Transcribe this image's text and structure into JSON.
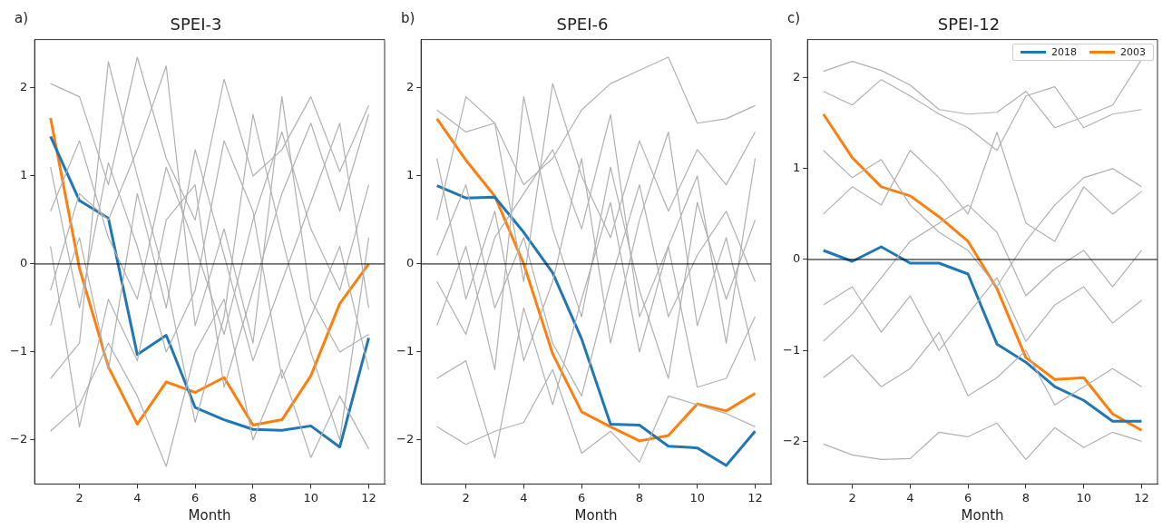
{
  "chart_data": [
    {
      "type": "line",
      "title": "SPEI-3",
      "xlabel": "Month",
      "annotations": [
        "a)"
      ],
      "x": [
        1,
        2,
        3,
        4,
        5,
        6,
        7,
        8,
        9,
        10,
        11,
        12
      ],
      "xlim": [
        0.45,
        12.55
      ],
      "xticks": [
        2,
        4,
        6,
        8,
        10,
        12
      ],
      "ylim": [
        -2.5,
        2.55
      ],
      "yticks": [
        -2,
        -1,
        0,
        1,
        2
      ],
      "grid": false,
      "legend": false,
      "ref_lines": [
        {
          "axis": "y",
          "value": 0,
          "color": "#000000"
        }
      ],
      "series": [
        {
          "color": "#b0b0b0",
          "values": [
            2.05,
            1.9,
            0.9,
            2.35,
            1.2,
            0.5,
            2.1,
            1.0,
            1.3,
            1.9,
            1.05,
            1.8
          ]
        },
        {
          "color": "#b0b0b0",
          "values": [
            -1.9,
            -1.6,
            -0.9,
            -1.5,
            -2.3,
            -1.0,
            -0.4,
            -2.0,
            -1.2,
            -2.2,
            -1.5,
            -2.1
          ]
        },
        {
          "color": "#b0b0b0",
          "values": [
            0.6,
            1.4,
            0.3,
            -0.4,
            1.1,
            0.2,
            -0.8,
            0.5,
            1.5,
            0.4,
            -0.3,
            0.9
          ]
        },
        {
          "color": "#b0b0b0",
          "values": [
            -0.7,
            0.3,
            -1.2,
            0.8,
            -0.5,
            1.3,
            0.1,
            -1.1,
            -0.2,
            0.7,
            1.6,
            -0.5
          ]
        },
        {
          "color": "#b0b0b0",
          "values": [
            1.1,
            -0.5,
            1.15,
            0.2,
            -1.0,
            -0.3,
            1.4,
            0.6,
            -1.3,
            -0.6,
            0.2,
            -1.2
          ]
        },
        {
          "color": "#b0b0b0",
          "values": [
            -1.3,
            -0.9,
            2.3,
            1.0,
            -0.2,
            -1.8,
            -0.6,
            1.7,
            0.3,
            -1.0,
            -2.0,
            0.3
          ]
        },
        {
          "color": "#b0b0b0",
          "values": [
            0.2,
            -1.85,
            -0.4,
            -1.1,
            0.5,
            0.9,
            -1.4,
            -0.3,
            0.8,
            1.6,
            0.6,
            1.7
          ]
        },
        {
          "color": "#b0b0b0",
          "values": [
            -0.3,
            0.8,
            0.5,
            1.3,
            2.25,
            -0.7,
            0.4,
            -0.9,
            1.9,
            -0.4,
            -1.0,
            -0.8
          ]
        },
        {
          "color": "#1f77b4",
          "values": [
            1.45,
            0.72,
            0.52,
            -1.03,
            -0.81,
            -1.63,
            -1.77,
            -1.88,
            -1.89,
            -1.84,
            -2.08,
            -0.84
          ]
        },
        {
          "color": "#ff7f0e",
          "values": [
            1.66,
            -0.05,
            -1.17,
            -1.82,
            -1.34,
            -1.46,
            -1.29,
            -1.83,
            -1.77,
            -1.27,
            -0.45,
            0.0
          ]
        }
      ]
    },
    {
      "type": "line",
      "title": "SPEI-6",
      "xlabel": "Month",
      "annotations": [
        "b)"
      ],
      "x": [
        1,
        2,
        3,
        4,
        5,
        6,
        7,
        8,
        9,
        10,
        11,
        12
      ],
      "xlim": [
        0.45,
        12.55
      ],
      "xticks": [
        2,
        4,
        6,
        8,
        10,
        12
      ],
      "ylim": [
        -2.5,
        2.55
      ],
      "yticks": [
        -2,
        -1,
        0,
        1,
        2
      ],
      "grid": false,
      "legend": false,
      "ref_lines": [
        {
          "axis": "y",
          "value": 0,
          "color": "#000000"
        }
      ],
      "series": [
        {
          "color": "#b0b0b0",
          "values": [
            1.75,
            1.5,
            1.6,
            0.9,
            1.2,
            1.75,
            2.05,
            2.2,
            2.35,
            1.6,
            1.65,
            1.8
          ]
        },
        {
          "color": "#b0b0b0",
          "values": [
            -1.85,
            -2.05,
            -1.9,
            -1.8,
            -1.2,
            -2.15,
            -1.9,
            -2.25,
            -1.5,
            -1.6,
            -1.7,
            -1.85
          ]
        },
        {
          "color": "#b0b0b0",
          "values": [
            0.5,
            1.9,
            1.6,
            -0.2,
            2.05,
            1.0,
            0.3,
            1.4,
            0.6,
            1.3,
            0.9,
            1.5
          ]
        },
        {
          "color": "#b0b0b0",
          "values": [
            -0.7,
            0.2,
            -1.2,
            1.9,
            0.4,
            -0.6,
            1.1,
            -0.3,
            -1.3,
            0.7,
            -0.4,
            0.5
          ]
        },
        {
          "color": "#b0b0b0",
          "values": [
            1.2,
            -0.4,
            0.6,
            -1.1,
            -0.2,
            1.2,
            -0.9,
            0.5,
            1.5,
            -0.7,
            0.3,
            -1.1
          ]
        },
        {
          "color": "#b0b0b0",
          "values": [
            -1.3,
            -1.1,
            -2.2,
            -0.5,
            -1.6,
            -0.4,
            0.7,
            -1.0,
            0.2,
            -1.4,
            -1.3,
            -0.6
          ]
        },
        {
          "color": "#b0b0b0",
          "values": [
            0.1,
            0.9,
            -0.5,
            0.3,
            -0.9,
            -1.5,
            -0.2,
            0.9,
            -0.6,
            0.1,
            0.6,
            -0.2
          ]
        },
        {
          "color": "#b0b0b0",
          "values": [
            -0.2,
            -0.8,
            0.3,
            0.8,
            1.3,
            0.4,
            1.7,
            -0.6,
            0.2,
            1.0,
            -0.9,
            1.2
          ]
        },
        {
          "color": "#1f77b4",
          "values": [
            0.89,
            0.75,
            0.76,
            0.36,
            -0.1,
            -0.85,
            -1.82,
            -1.83,
            -2.07,
            -2.09,
            -2.29,
            -1.9
          ]
        },
        {
          "color": "#ff7f0e",
          "values": [
            1.65,
            1.18,
            0.77,
            0.0,
            -1.02,
            -1.68,
            -1.85,
            -2.01,
            -1.95,
            -1.59,
            -1.67,
            -1.47
          ]
        }
      ]
    },
    {
      "type": "line",
      "title": "SPEI-12",
      "xlabel": "Month",
      "annotations": [
        "c)"
      ],
      "x": [
        1,
        2,
        3,
        4,
        5,
        6,
        7,
        8,
        9,
        10,
        11,
        12
      ],
      "xlim": [
        0.45,
        12.55
      ],
      "xticks": [
        2,
        4,
        6,
        8,
        10,
        12
      ],
      "ylim": [
        -2.47,
        2.42
      ],
      "yticks": [
        -2,
        -1,
        0,
        1,
        2
      ],
      "grid": false,
      "legend": "top right",
      "ref_lines": [
        {
          "axis": "y",
          "value": 0,
          "color": "#000000"
        }
      ],
      "series": [
        {
          "color": "#b0b0b0",
          "values": [
            2.07,
            2.18,
            2.08,
            1.92,
            1.65,
            1.6,
            1.62,
            1.85,
            1.45,
            1.57,
            1.7,
            2.2
          ]
        },
        {
          "color": "#b0b0b0",
          "values": [
            -2.03,
            -2.15,
            -2.2,
            -2.19,
            -1.9,
            -1.95,
            -1.8,
            -2.2,
            -1.85,
            -2.07,
            -1.9,
            -2.0
          ]
        },
        {
          "color": "#b0b0b0",
          "values": [
            1.85,
            1.7,
            1.98,
            1.8,
            1.6,
            1.45,
            1.2,
            1.8,
            1.9,
            1.45,
            1.6,
            1.65
          ]
        },
        {
          "color": "#b0b0b0",
          "values": [
            0.5,
            0.8,
            0.6,
            1.2,
            0.9,
            0.5,
            1.4,
            0.4,
            0.2,
            0.8,
            0.5,
            0.75
          ]
        },
        {
          "color": "#b0b0b0",
          "values": [
            -0.5,
            -0.3,
            -0.8,
            -0.4,
            -1.0,
            -0.6,
            -0.2,
            -0.9,
            -0.5,
            -0.3,
            -0.7,
            -0.45
          ]
        },
        {
          "color": "#b0b0b0",
          "values": [
            -1.3,
            -1.05,
            -1.4,
            -1.2,
            -0.8,
            -1.5,
            -1.3,
            -1.0,
            -1.6,
            -1.4,
            -1.2,
            -1.4
          ]
        },
        {
          "color": "#b0b0b0",
          "values": [
            1.2,
            0.9,
            1.1,
            0.6,
            0.3,
            0.1,
            -0.3,
            0.2,
            0.6,
            0.9,
            1.0,
            0.8
          ]
        },
        {
          "color": "#b0b0b0",
          "values": [
            -0.9,
            -0.6,
            -0.2,
            0.2,
            0.4,
            0.6,
            0.3,
            -0.4,
            -0.1,
            0.1,
            -0.3,
            0.1
          ]
        },
        {
          "name": "2018",
          "color": "#1f77b4",
          "values": [
            0.1,
            -0.02,
            0.14,
            -0.04,
            -0.04,
            -0.16,
            -0.93,
            -1.13,
            -1.4,
            -1.55,
            -1.78,
            -1.78
          ]
        },
        {
          "name": "2003",
          "color": "#ff7f0e",
          "values": [
            1.6,
            1.12,
            0.8,
            0.7,
            0.47,
            0.2,
            -0.32,
            -1.08,
            -1.32,
            -1.3,
            -1.7,
            -1.88
          ]
        }
      ]
    }
  ]
}
